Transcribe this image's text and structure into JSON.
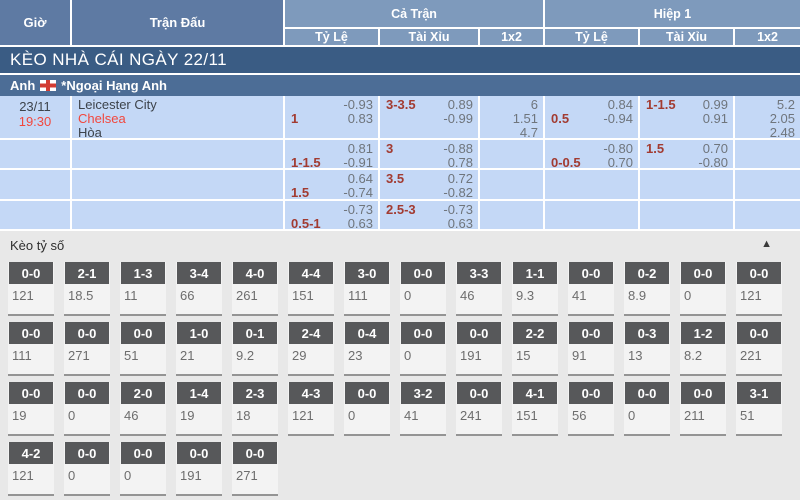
{
  "table": {
    "columns": {
      "time": "Giờ",
      "match": "Trận Đấu",
      "full_match": "Cả Trận",
      "first_half": "Hiệp 1",
      "sub": [
        "Tỷ Lệ",
        "Tài Xỉu",
        "1x2"
      ]
    },
    "title": "KÈO NHÀ CÁI NGÀY 22/11",
    "league": {
      "country": "Anh",
      "flag_icon": "england-flag",
      "name": "*Ngoại Hạng Anh"
    },
    "match": {
      "date": "23/11",
      "time": "19:30",
      "home": "Leicester City",
      "away": "Chelsea",
      "draw_label": "Hòa"
    },
    "odds_rows": [
      {
        "cells": [
          {
            "type": "hdp",
            "lines": [
              [
                "",
                "-0.93"
              ],
              [
                "1",
                "0.83"
              ]
            ]
          },
          {
            "type": "ou",
            "lines": [
              [
                "3-3.5",
                "0.89"
              ],
              [
                "",
                "-0.99"
              ]
            ]
          },
          {
            "type": "1x2",
            "values": [
              "6",
              "1.51",
              "4.7"
            ]
          },
          {
            "type": "hdp",
            "lines": [
              [
                "",
                "0.84"
              ],
              [
                "0.5",
                "-0.94"
              ]
            ]
          },
          {
            "type": "ou",
            "lines": [
              [
                "1-1.5",
                "0.99"
              ],
              [
                "",
                "0.91"
              ]
            ]
          },
          {
            "type": "1x2",
            "values": [
              "5.2",
              "2.05",
              "2.48"
            ]
          }
        ]
      },
      {
        "cells": [
          {
            "type": "hdp",
            "lines": [
              [
                "",
                "0.81"
              ],
              [
                "1-1.5",
                "-0.91"
              ]
            ]
          },
          {
            "type": "ou",
            "lines": [
              [
                "3",
                "-0.88"
              ],
              [
                "",
                "0.78"
              ]
            ]
          },
          {
            "type": "1x2",
            "values": []
          },
          {
            "type": "hdp",
            "lines": [
              [
                "",
                "-0.80"
              ],
              [
                "0-0.5",
                "0.70"
              ]
            ]
          },
          {
            "type": "ou",
            "lines": [
              [
                "1.5",
                "0.70"
              ],
              [
                "",
                "-0.80"
              ]
            ]
          },
          {
            "type": "1x2",
            "values": []
          }
        ]
      },
      {
        "cells": [
          {
            "type": "hdp",
            "lines": [
              [
                "",
                "0.64"
              ],
              [
                "1.5",
                "-0.74"
              ]
            ]
          },
          {
            "type": "ou",
            "lines": [
              [
                "3.5",
                "0.72"
              ],
              [
                "",
                "-0.82"
              ]
            ]
          },
          {
            "type": "1x2",
            "values": []
          },
          {
            "type": "hdp",
            "lines": []
          },
          {
            "type": "ou",
            "lines": []
          },
          {
            "type": "1x2",
            "values": []
          }
        ]
      },
      {
        "cells": [
          {
            "type": "hdp",
            "lines": [
              [
                "",
                "-0.73"
              ],
              [
                "0.5-1",
                "0.63"
              ]
            ]
          },
          {
            "type": "ou",
            "lines": [
              [
                "2.5-3",
                "-0.73"
              ],
              [
                "",
                "0.63"
              ]
            ]
          },
          {
            "type": "1x2",
            "values": []
          },
          {
            "type": "hdp",
            "lines": []
          },
          {
            "type": "ou",
            "lines": []
          },
          {
            "type": "1x2",
            "values": []
          }
        ]
      }
    ]
  },
  "score_section": {
    "title": "Kèo tỷ số",
    "collapse_icon": "▲",
    "rows": [
      [
        {
          "score": "0-0",
          "odds": "121"
        },
        {
          "score": "2-1",
          "odds": "18.5"
        },
        {
          "score": "1-3",
          "odds": "11"
        },
        {
          "score": "3-4",
          "odds": "66"
        },
        {
          "score": "4-0",
          "odds": "261"
        },
        {
          "score": "4-4",
          "odds": "151"
        },
        {
          "score": "3-0",
          "odds": "111"
        },
        {
          "score": "0-0",
          "odds": "0"
        },
        {
          "score": "3-3",
          "odds": "46"
        },
        {
          "score": "1-1",
          "odds": "9.3"
        },
        {
          "score": "0-0",
          "odds": "41"
        },
        {
          "score": "0-2",
          "odds": "8.9"
        },
        {
          "score": "0-0",
          "odds": "0"
        },
        {
          "score": "0-0",
          "odds": "121"
        }
      ],
      [
        {
          "score": "0-0",
          "odds": "111"
        },
        {
          "score": "0-0",
          "odds": "271"
        },
        {
          "score": "0-0",
          "odds": "51"
        },
        {
          "score": "1-0",
          "odds": "21"
        },
        {
          "score": "0-1",
          "odds": "9.2"
        },
        {
          "score": "2-4",
          "odds": "29"
        },
        {
          "score": "0-4",
          "odds": "23"
        },
        {
          "score": "0-0",
          "odds": "0"
        },
        {
          "score": "0-0",
          "odds": "191"
        },
        {
          "score": "2-2",
          "odds": "15"
        },
        {
          "score": "0-0",
          "odds": "91"
        },
        {
          "score": "0-3",
          "odds": "13"
        },
        {
          "score": "1-2",
          "odds": "8.2"
        },
        {
          "score": "0-0",
          "odds": "221"
        }
      ],
      [
        {
          "score": "0-0",
          "odds": "19"
        },
        {
          "score": "0-0",
          "odds": "0"
        },
        {
          "score": "2-0",
          "odds": "46"
        },
        {
          "score": "1-4",
          "odds": "19"
        },
        {
          "score": "2-3",
          "odds": "18"
        },
        {
          "score": "4-3",
          "odds": "121"
        },
        {
          "score": "0-0",
          "odds": "0"
        },
        {
          "score": "3-2",
          "odds": "41"
        },
        {
          "score": "0-0",
          "odds": "241"
        },
        {
          "score": "4-1",
          "odds": "151"
        },
        {
          "score": "0-0",
          "odds": "56"
        },
        {
          "score": "0-0",
          "odds": "0"
        },
        {
          "score": "0-0",
          "odds": "211"
        },
        {
          "score": "3-1",
          "odds": "51"
        }
      ],
      [
        {
          "score": "4-2",
          "odds": "121"
        },
        {
          "score": "0-0",
          "odds": "0"
        },
        {
          "score": "0-0",
          "odds": "0"
        },
        {
          "score": "0-0",
          "odds": "191"
        },
        {
          "score": "0-0",
          "odds": "271"
        }
      ]
    ]
  },
  "colors": {
    "header_dark": "#5e7aa3",
    "header_light": "#7e9abc",
    "title_bar": "#3a5c84",
    "league_bar": "#4c6d96",
    "row_bg": "#c4d8f6",
    "handicap_red": "#a23b31",
    "accent_red": "#f2473d",
    "odds_gray": "#6f757c",
    "score_badge_bg": "#57585a",
    "section_bg": "#e8e8e8"
  }
}
